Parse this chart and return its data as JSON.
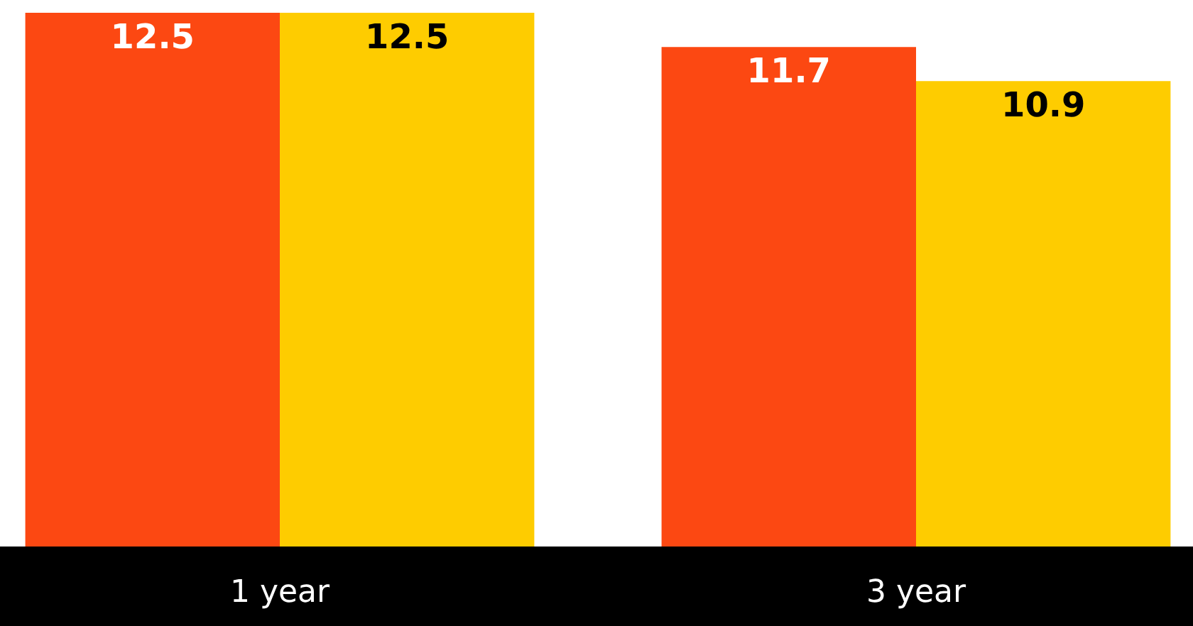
{
  "chart_data": {
    "type": "bar",
    "categories": [
      "1 year",
      "3 year"
    ],
    "series": [
      {
        "color": "#fc4812",
        "values": [
          12.5,
          11.7
        ]
      },
      {
        "color": "#fecc00",
        "values": [
          12.5,
          10.9
        ]
      }
    ],
    "data_labels": true,
    "ylim": [
      0,
      12.8
    ],
    "tick_labels": "x",
    "legend": false
  }
}
